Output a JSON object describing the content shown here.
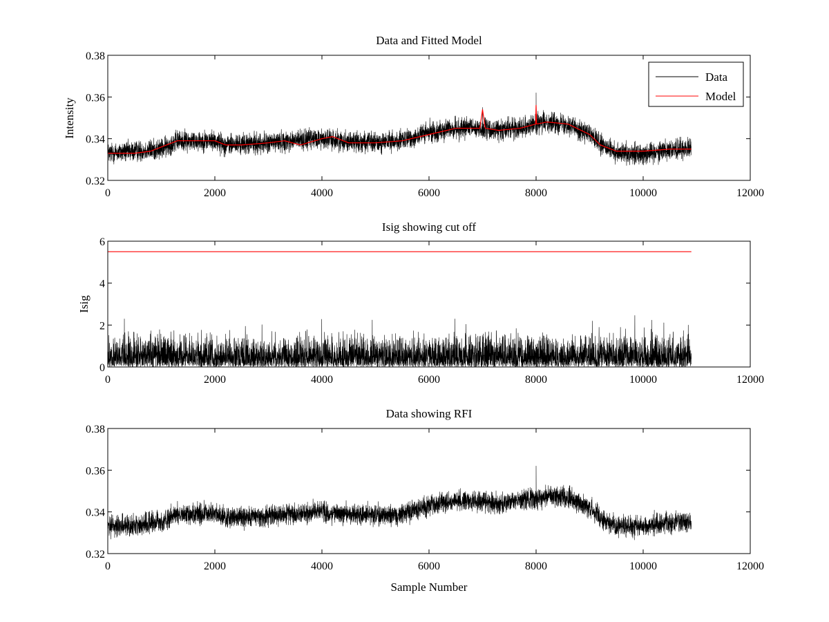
{
  "figure": {
    "background": "#ffffff"
  },
  "chart_data": [
    {
      "type": "line",
      "title": "Data and Fitted Model",
      "xlabel": "",
      "ylabel": "Intensity",
      "xlim": [
        0,
        12000
      ],
      "ylim": [
        0.32,
        0.38
      ],
      "xticks": [
        0,
        2000,
        4000,
        6000,
        8000,
        10000,
        12000
      ],
      "yticks": [
        0.32,
        0.34,
        0.36,
        0.38
      ],
      "ytick_labels": [
        "0.32",
        "0.34",
        "0.36",
        "0.38"
      ],
      "legend": {
        "position": "top-right",
        "entries": [
          "Data",
          "Model"
        ]
      },
      "series": [
        {
          "name": "Data",
          "color": "#000000",
          "kind": "noisy",
          "n_samples": 10900,
          "baseline": {
            "x": [
              0,
              1000,
              1300,
              2000,
              2200,
              3000,
              3400,
              4000,
              4400,
              5000,
              5500,
              6000,
              6500,
              6900,
              7200,
              7600,
              8000,
              8200,
              8600,
              9000,
              9200,
              9500,
              10000,
              10500,
              10900
            ],
            "y": [
              0.333,
              0.335,
              0.339,
              0.339,
              0.337,
              0.338,
              0.339,
              0.34,
              0.339,
              0.338,
              0.339,
              0.343,
              0.345,
              0.345,
              0.344,
              0.345,
              0.347,
              0.348,
              0.347,
              0.342,
              0.337,
              0.333,
              0.333,
              0.335,
              0.335
            ]
          },
          "noise_amplitude": 0.0045,
          "spikes": [
            {
              "x": 7000,
              "y": 0.355
            },
            {
              "x": 8000,
              "y": 0.362
            }
          ]
        },
        {
          "name": "Model",
          "color": "#ff0000",
          "kind": "smooth",
          "x": [
            0,
            500,
            800,
            1000,
            1300,
            1600,
            2000,
            2200,
            2500,
            3000,
            3300,
            3600,
            4000,
            4200,
            4500,
            5000,
            5500,
            6000,
            6500,
            6950,
            7000,
            7050,
            7300,
            7700,
            7990,
            8000,
            8010,
            8200,
            8600,
            9000,
            9200,
            9500,
            10000,
            10500,
            10900
          ],
          "y": [
            0.333,
            0.333,
            0.334,
            0.336,
            0.339,
            0.339,
            0.339,
            0.337,
            0.337,
            0.338,
            0.339,
            0.337,
            0.34,
            0.341,
            0.338,
            0.338,
            0.339,
            0.342,
            0.345,
            0.345,
            0.354,
            0.345,
            0.344,
            0.345,
            0.347,
            0.356,
            0.347,
            0.348,
            0.347,
            0.342,
            0.337,
            0.334,
            0.334,
            0.335,
            0.335
          ]
        }
      ]
    },
    {
      "type": "line",
      "title": "Isig showing cut off",
      "xlabel": "",
      "ylabel": "Isig",
      "xlim": [
        0,
        12000
      ],
      "ylim": [
        0,
        6
      ],
      "xticks": [
        0,
        2000,
        4000,
        6000,
        8000,
        10000,
        12000
      ],
      "yticks": [
        0,
        2,
        4,
        6
      ],
      "ytick_labels": [
        "0",
        "2",
        "4",
        "6"
      ],
      "series": [
        {
          "color": "#000000",
          "kind": "absnoise",
          "n_samples": 10900,
          "scale": 0.9,
          "clip": 4.0
        },
        {
          "color": "#ff0000",
          "kind": "smooth",
          "x": [
            0,
            10900
          ],
          "y": [
            5.5,
            5.5
          ]
        }
      ]
    },
    {
      "type": "line",
      "title": "Data showing RFI",
      "xlabel": "Sample Number",
      "ylabel": "",
      "xlim": [
        0,
        12000
      ],
      "ylim": [
        0.32,
        0.38
      ],
      "xticks": [
        0,
        2000,
        4000,
        6000,
        8000,
        10000,
        12000
      ],
      "yticks": [
        0.32,
        0.34,
        0.36,
        0.38
      ],
      "ytick_labels": [
        "0.32",
        "0.34",
        "0.36",
        "0.38"
      ],
      "series": [
        {
          "color": "#000000",
          "kind": "noisy",
          "n_samples": 10900,
          "baseline": {
            "x": [
              0,
              1000,
              1300,
              2000,
              2200,
              3000,
              3400,
              4000,
              4400,
              5000,
              5500,
              6000,
              6500,
              6900,
              7200,
              7600,
              8000,
              8200,
              8600,
              9000,
              9200,
              9500,
              10000,
              10500,
              10900
            ],
            "y": [
              0.333,
              0.335,
              0.339,
              0.339,
              0.337,
              0.338,
              0.339,
              0.34,
              0.339,
              0.338,
              0.339,
              0.343,
              0.345,
              0.345,
              0.344,
              0.345,
              0.347,
              0.348,
              0.347,
              0.342,
              0.337,
              0.333,
              0.333,
              0.335,
              0.335
            ]
          },
          "noise_amplitude": 0.0045,
          "spikes": [
            {
              "x": 8000,
              "y": 0.362
            }
          ]
        }
      ]
    }
  ]
}
